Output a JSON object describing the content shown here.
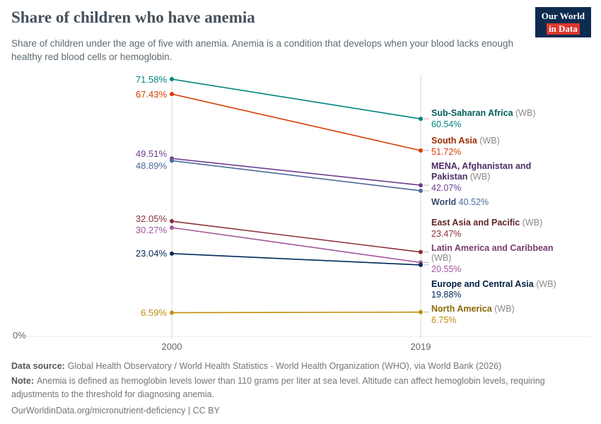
{
  "header": {
    "title": "Share of children who have anemia",
    "subtitle": "Share of children under the age of five with anemia. Anemia is a condition that develops when your blood lacks enough healthy red blood cells or hemoglobin.",
    "logo": {
      "line1": "Our World",
      "line2": "in Data"
    }
  },
  "chart_data": {
    "type": "line",
    "subtype": "slope",
    "x": [
      2000,
      2019
    ],
    "x_labels": [
      "2000",
      "2019"
    ],
    "y_axis": {
      "min": 0,
      "max": 75,
      "min_label": "0%"
    },
    "grid": "vertical-only",
    "legend_position": "right",
    "series": [
      {
        "name": "Sub-Saharan Africa",
        "suffix": "(WB)",
        "values": [
          71.58,
          60.54
        ],
        "start_label": "71.58%",
        "end_label": "60.54%",
        "color": "#00847E"
      },
      {
        "name": "South Asia",
        "suffix": "(WB)",
        "values": [
          67.43,
          51.72
        ],
        "start_label": "67.43%",
        "end_label": "51.72%",
        "color": "#D73C00"
      },
      {
        "name": "MENA, Afghanistan and Pakistan",
        "suffix": "(WB)",
        "values": [
          49.51,
          42.07
        ],
        "start_label": "49.51%",
        "end_label": "42.07%",
        "color": "#6D3E91"
      },
      {
        "name": "World",
        "suffix": "",
        "values": [
          48.89,
          40.52
        ],
        "start_label": "48.89%",
        "end_label": "40.52%",
        "color": "#4C6A9C"
      },
      {
        "name": "East Asia and Pacific",
        "suffix": "(WB)",
        "values": [
          32.05,
          23.47
        ],
        "start_label": "32.05%",
        "end_label": "23.47%",
        "color": "#883039"
      },
      {
        "name": "Latin America and Caribbean",
        "suffix": "(WB)",
        "values": [
          30.27,
          20.55
        ],
        "start_label": "30.27%",
        "end_label": "20.55%",
        "color": "#A2559C"
      },
      {
        "name": "Europe and Central Asia",
        "suffix": "(WB)",
        "values": [
          23.04,
          19.88
        ],
        "start_label": "23.04%",
        "end_label": "19.88%",
        "color": "#00295B"
      },
      {
        "name": "North America",
        "suffix": "(WB)",
        "values": [
          6.59,
          6.75
        ],
        "start_label": "6.59%",
        "end_label": "6.75%",
        "color": "#BE8E0A"
      }
    ]
  },
  "footer": {
    "data_source_label": "Data source:",
    "data_source": "Global Health Observatory / World Health Statistics - World Health Organization (WHO), via World Bank (2026)",
    "note_label": "Note:",
    "note": "Anemia is defined as hemoglobin levels lower than 110 grams per liter at sea level. Altitude can affect hemoglobin levels, requiring adjustments to the threshold for diagnosing anemia.",
    "link": "OurWorldinData.org/micronutrient-deficiency | CC BY"
  }
}
